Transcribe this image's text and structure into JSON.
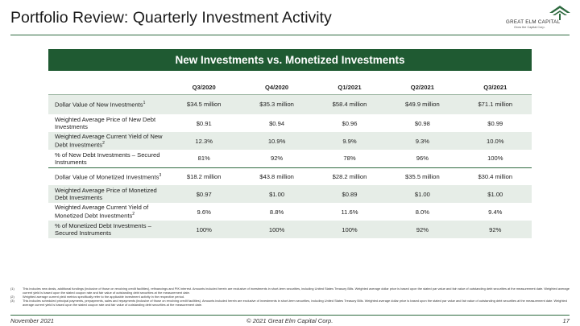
{
  "header": {
    "title": "Portfolio Review: Quarterly Investment Activity",
    "logo_text": "GREAT ELM CAPITAL",
    "logo_sub": "Grow the Capital Corp."
  },
  "banner": "New Investments vs. Monetized Investments",
  "table": {
    "columns": [
      "",
      "Q3/2020",
      "Q4/2020",
      "Q1/2021",
      "Q2/2021",
      "Q3/2021"
    ],
    "rows": [
      {
        "label": "Dollar Value of New Investments",
        "sup": "1",
        "values": [
          "$34.5 million",
          "$35.3 million",
          "$58.4 million",
          "$49.9 million",
          "$71.1 million"
        ]
      },
      {
        "label": "Weighted Average Price of New Debt Investments",
        "sup": "",
        "values": [
          "$0.91",
          "$0.94",
          "$0.96",
          "$0.98",
          "$0.99"
        ]
      },
      {
        "label": "Weighted Average Current Yield of New Debt Investments",
        "sup": "2",
        "values": [
          "12.3%",
          "10.9%",
          "9.9%",
          "9.3%",
          "10.0%"
        ]
      },
      {
        "label": "% of New Debt Investments – Secured Instruments",
        "sup": "",
        "values": [
          "81%",
          "92%",
          "78%",
          "96%",
          "100%"
        ]
      },
      {
        "label": "Dollar Value of Monetized Investments",
        "sup": "3",
        "values": [
          "$18.2 million",
          "$43.8 million",
          "$28.2 million",
          "$35.5 million",
          "$30.4 million"
        ]
      },
      {
        "label": "Weighted Average Price of Monetized Debt Investments",
        "sup": "",
        "values": [
          "$0.97",
          "$1.00",
          "$0.89",
          "$1.00",
          "$1.00"
        ]
      },
      {
        "label": "Weighted Average Current Yield of Monetized Debt Investments",
        "sup": "2",
        "values": [
          "9.6%",
          "8.8%",
          "11.6%",
          "8.0%",
          "9.4%"
        ]
      },
      {
        "label": "% of Monetized Debt Investments – Secured Instruments",
        "sup": "",
        "values": [
          "100%",
          "100%",
          "100%",
          "92%",
          "92%"
        ]
      }
    ]
  },
  "footnotes": [
    {
      "no": "(1)",
      "text": "This includes new deals, additional fundings (inclusive of those on revolving credit facilities), refinancings and PIK interest. Amounts included herein are exclusive of investments in short-term securities, including United States Treasury Bills. Weighted average dollar price is based upon the stated par value and fair value of outstanding debt securities at the measurement date. Weighted average current yield is based upon the stated coupon rate and fair value of outstanding debt securities at the measurement date."
    },
    {
      "no": "(2)",
      "text": "Weighted average current yield metrics specifically refer to the applicable investment activity in the respective period."
    },
    {
      "no": "(3)",
      "text": "This includes scheduled principal payments, prepayments, sales and repayments (inclusive of those on revolving credit facilities). Amounts included herein are exclusive of investments in short-term securities, including United States Treasury Bills. Weighted average dollar price is based upon the stated par value and fair value of outstanding debt securities at the measurement date. Weighted average current yield is based upon the stated coupon rate and fair value of outstanding debt securities at the measurement date."
    }
  ],
  "footer": {
    "left": "November 2021",
    "center": "© 2021 Great Elm Capital Corp.",
    "page": "17"
  }
}
